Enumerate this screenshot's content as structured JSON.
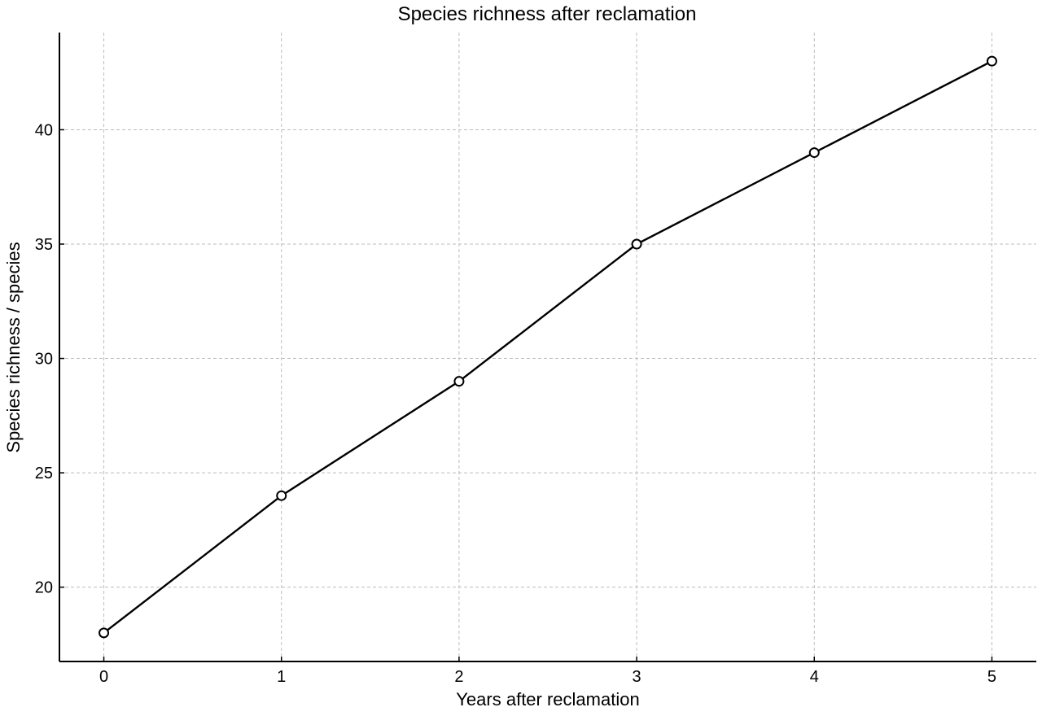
{
  "chart_data": {
    "type": "line",
    "title": "Species richness after reclamation",
    "xlabel": "Years after reclamation",
    "ylabel": "Species richness / species",
    "x": [
      0,
      1,
      2,
      3,
      4,
      5
    ],
    "series": [
      {
        "values": [
          18,
          24,
          29,
          35,
          39,
          43
        ],
        "color": "#000000",
        "marker": "open-circle"
      }
    ],
    "xticks": [
      0,
      1,
      2,
      3,
      4,
      5
    ],
    "yticks": [
      20,
      25,
      30,
      35,
      40
    ],
    "xlim": [
      -0.25,
      5.25
    ],
    "ylim": [
      16.75,
      44.25
    ],
    "grid": true,
    "grid_style": "dashed",
    "grid_color": "#bdbdbd",
    "axis_color": "#000000",
    "background": "#ffffff"
  }
}
